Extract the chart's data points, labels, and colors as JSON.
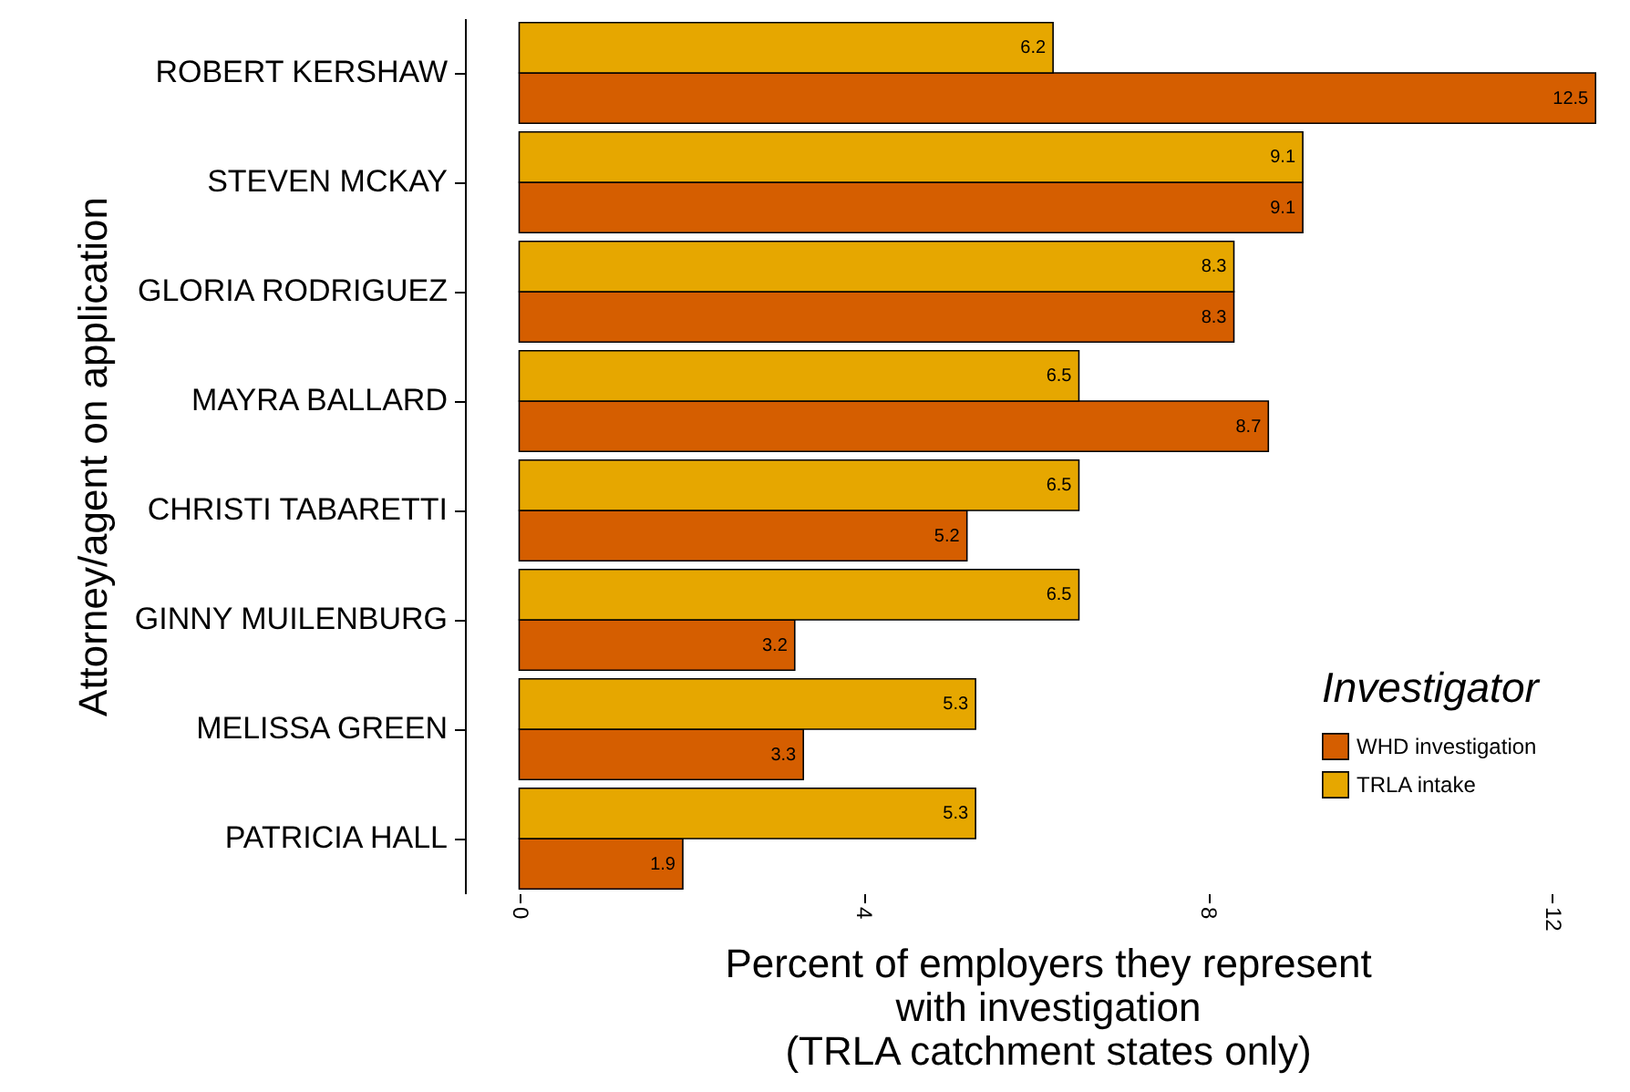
{
  "chart_data": {
    "type": "bar",
    "orientation": "horizontal",
    "xlabel": "Percent of employers they represent\nwith investigation\n(TRLA catchment states only)",
    "ylabel": "Attorney/agent on application",
    "legend_title": "Investigator",
    "categories": [
      "ROBERT KERSHAW",
      "STEVEN MCKAY",
      "GLORIA RODRIGUEZ",
      "MAYRA BALLARD",
      "CHRISTI TABARETTI",
      "GINNY MUILENBURG",
      "MELISSA GREEN",
      "PATRICIA HALL"
    ],
    "series": [
      {
        "name": "WHD investigation",
        "color": "#d55e00",
        "values": [
          12.5,
          9.1,
          8.3,
          8.7,
          5.2,
          3.2,
          3.3,
          1.9
        ]
      },
      {
        "name": "TRLA intake",
        "color": "#e6a700",
        "values": [
          6.2,
          9.1,
          8.3,
          6.5,
          6.5,
          6.5,
          5.3,
          5.3
        ]
      }
    ],
    "xlim": [
      -0.63,
      12.9
    ],
    "xticks": [
      0,
      4,
      8,
      12
    ],
    "grid": false,
    "legend": "bottom right",
    "data_labels": true
  }
}
